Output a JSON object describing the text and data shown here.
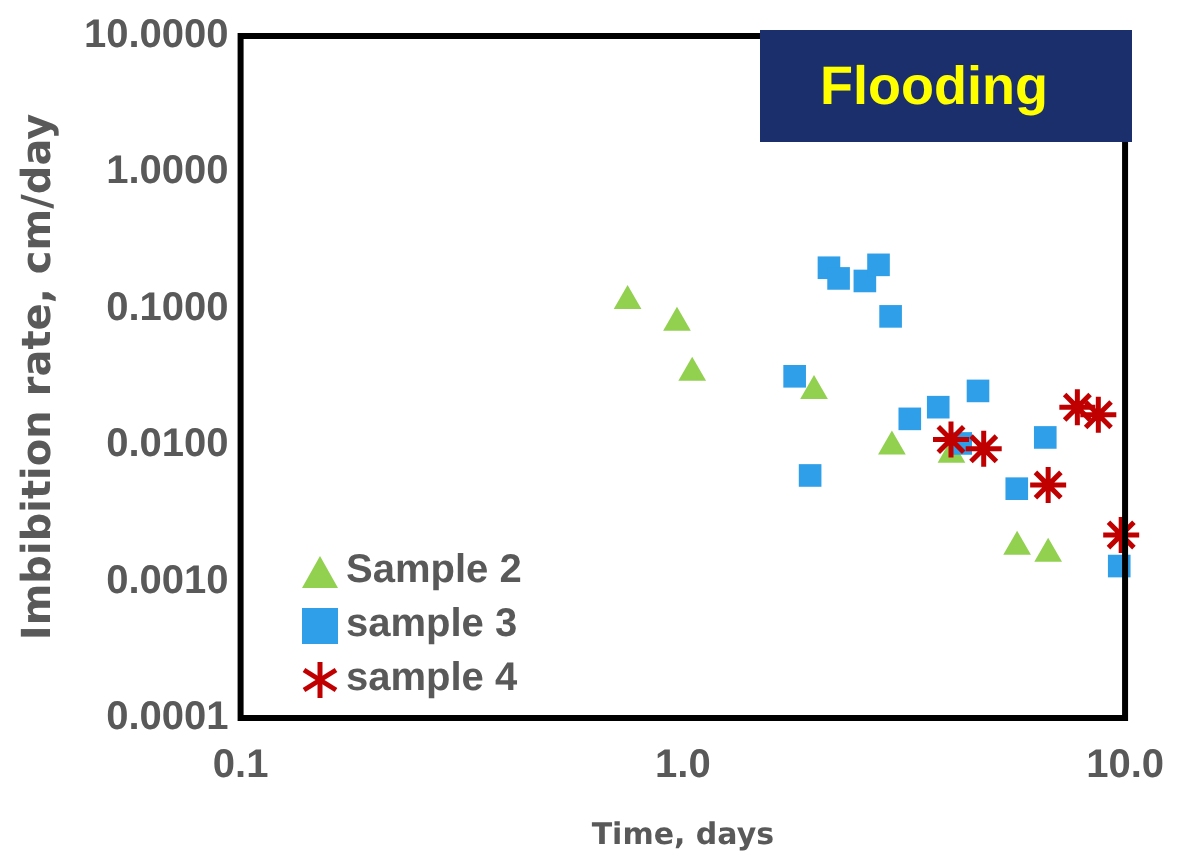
{
  "chart_data": {
    "type": "scatter",
    "title": "Flooding",
    "xlabel": "Time, days",
    "ylabel": "Imbibition rate, cm/day",
    "log": "xy",
    "grid": false,
    "legend": "bottom left",
    "xlim": [
      0.1,
      10
    ],
    "xticks": [
      {
        "value": 0.1,
        "label": "0.1"
      },
      {
        "value": 1,
        "label": "1.0"
      },
      {
        "value": 10,
        "label": "10.0"
      }
    ],
    "ylim": [
      0.0001,
      10
    ],
    "yticks": [
      {
        "value": 0.0001,
        "label": "0.0001"
      },
      {
        "value": 0.001,
        "label": "0.0010"
      },
      {
        "value": 0.01,
        "label": "0.0100"
      },
      {
        "value": 0.1,
        "label": "0.1000"
      },
      {
        "value": 1,
        "label": "1.0000"
      },
      {
        "value": 10,
        "label": "10.0000"
      }
    ],
    "series": [
      {
        "name": "Sample 2",
        "color": "#92d050",
        "marker": "triangle",
        "x": [
          0.75,
          0.97,
          1.05,
          1.98,
          2.97,
          4.05,
          5.7,
          6.7
        ],
        "values": [
          0.114,
          0.079,
          0.034,
          0.025,
          0.0098,
          0.0085,
          0.0018,
          0.0016
        ]
      },
      {
        "name": "sample 3",
        "color": "#2e9fe8",
        "marker": "square",
        "x": [
          2.14,
          2.25,
          2.58,
          2.77,
          2.95,
          1.79,
          1.94,
          3.26,
          3.78,
          4.25,
          4.65,
          5.69,
          6.6,
          9.7
        ],
        "values": [
          0.2,
          0.167,
          0.16,
          0.21,
          0.088,
          0.032,
          0.006,
          0.0156,
          0.019,
          0.0103,
          0.025,
          0.0048,
          0.0114,
          0.0013
        ]
      },
      {
        "name": "sample 4",
        "color": "#c00000",
        "marker": "cross",
        "x": [
          4.04,
          4.79,
          6.7,
          7.8,
          8.7,
          9.8
        ],
        "values": [
          0.011,
          0.0094,
          0.0051,
          0.019,
          0.0167,
          0.0022
        ]
      }
    ]
  }
}
